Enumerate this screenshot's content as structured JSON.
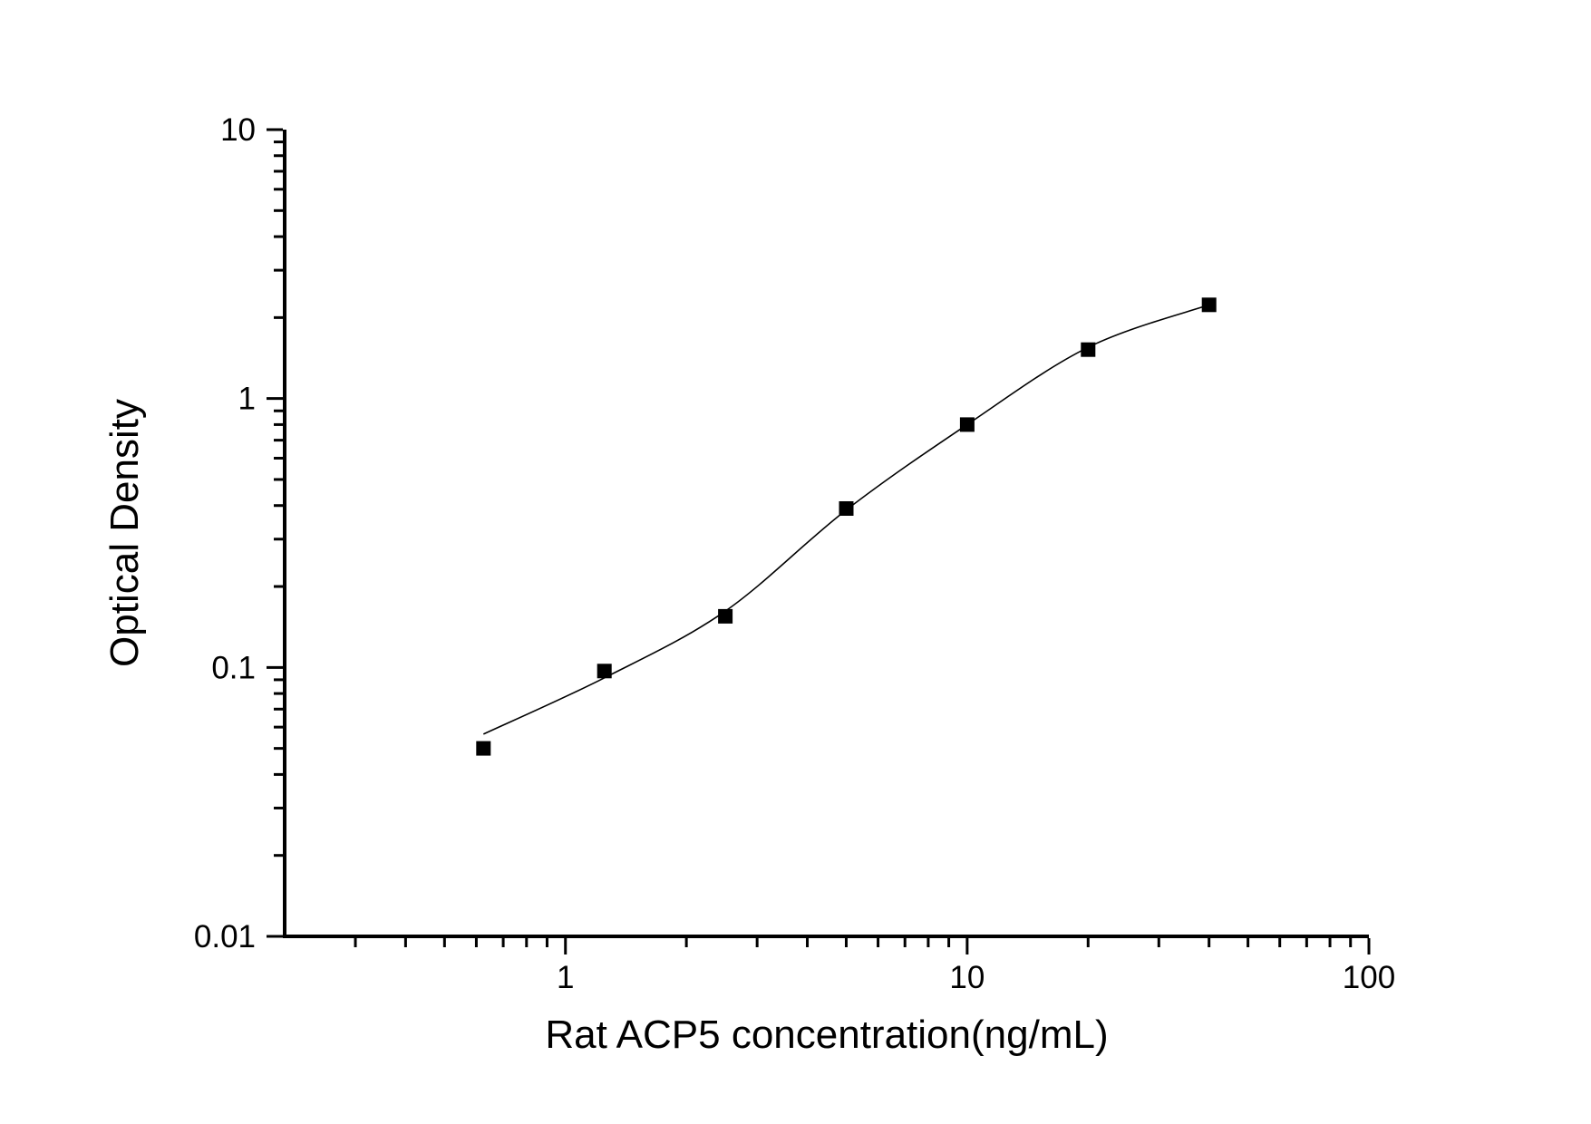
{
  "figure": {
    "background_color": "#ffffff",
    "foreground_color": "#000000"
  },
  "chart_data": {
    "type": "scatter",
    "title": "",
    "xlabel": "Rat ACP5 concentration(ng/mL)",
    "ylabel": "Optical Density",
    "x_scale": "log",
    "y_scale": "log",
    "xlim": [
      0.2,
      100
    ],
    "ylim": [
      0.01,
      10
    ],
    "grid": false,
    "legend": "none",
    "axis_color": "#000000",
    "curve_color": "#000000",
    "marker_color": "#000000",
    "x_major_ticks": [
      1,
      10,
      100
    ],
    "x_major_tick_labels": [
      "1",
      "10",
      "100"
    ],
    "x_minor_ticks": [
      0.3,
      0.4,
      0.5,
      0.6,
      0.7,
      0.8,
      0.9,
      2,
      3,
      4,
      5,
      6,
      7,
      8,
      9,
      20,
      30,
      40,
      50,
      60,
      70,
      80,
      90
    ],
    "y_major_ticks": [
      0.01,
      0.1,
      1,
      10
    ],
    "y_major_tick_labels": [
      "0.01",
      "0.1",
      "1",
      "10"
    ],
    "y_minor_ticks": [
      0.02,
      0.03,
      0.04,
      0.05,
      0.06,
      0.07,
      0.08,
      0.09,
      0.2,
      0.3,
      0.4,
      0.5,
      0.6,
      0.7,
      0.8,
      0.9,
      2,
      3,
      4,
      5,
      6,
      7,
      8,
      9
    ],
    "series": [
      {
        "name": "Rat ACP5 standard points",
        "marker": "filled-square",
        "x": [
          0.625,
          1.25,
          2.5,
          5,
          10,
          20,
          40
        ],
        "y": [
          0.05,
          0.097,
          0.155,
          0.39,
          0.8,
          1.52,
          2.23
        ]
      }
    ],
    "fit_curve": {
      "name": "4PL fit curve",
      "anchors_x": [
        0.625,
        1.25,
        2.5,
        5,
        10,
        20,
        40
      ],
      "anchors_y": [
        0.0565,
        0.0915,
        0.162,
        0.385,
        0.8,
        1.55,
        2.23
      ]
    }
  }
}
